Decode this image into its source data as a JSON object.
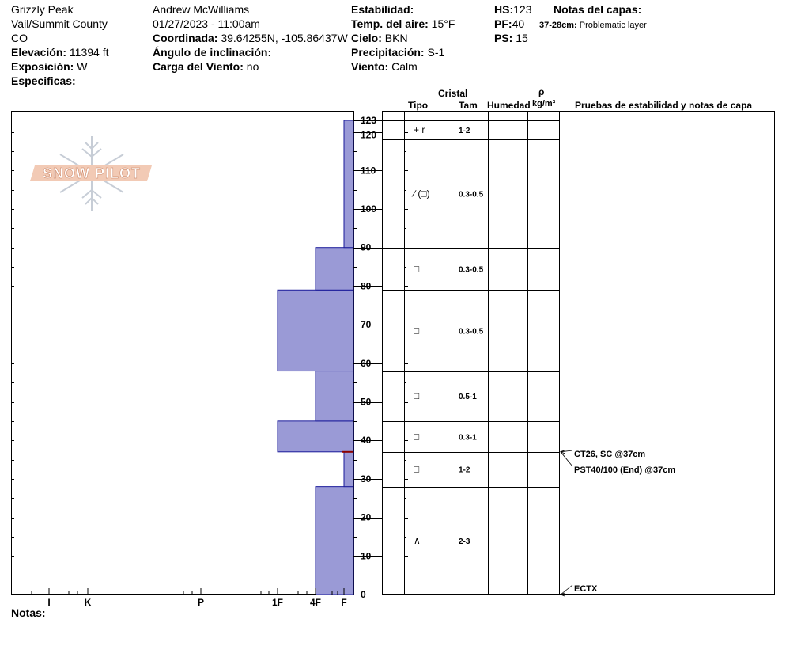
{
  "header": {
    "location": "Grizzly Peak",
    "region": "Vail/Summit County",
    "state": "CO",
    "elevation_label": "Elevación:",
    "elevation_value": "11394 ft",
    "aspect_label": "Exposición:",
    "aspect_value": "W",
    "specifics_label": "Especificas:",
    "observer": "Andrew McWilliams",
    "datetime": "01/27/2023 - 11:00am",
    "coord_label": "Coordinada:",
    "coord_value": "39.64255N, -105.86437W",
    "slope_label": "Ángulo de inclinación:",
    "slope_value": "",
    "wind_load_label": "Carga del Viento:",
    "wind_load_value": "no",
    "stability_label": "Estabilidad:",
    "stability_value": "",
    "air_temp_label": "Temp. del aire:",
    "air_temp_value": "15°F",
    "sky_label": "Cielo:",
    "sky_value": "BKN",
    "precip_label": "Precipitación:",
    "precip_value": "S-1",
    "wind_label": "Viento:",
    "wind_value": "Calm",
    "hs_label": "HS:",
    "hs_value": "123",
    "pf_label": "PF:",
    "pf_value": "40",
    "ps_label": "PS:",
    "ps_value": "15",
    "layer_notes_label": "Notas del capas:",
    "layer_note_range": "37-28cm:",
    "layer_note_text": "Problematic layer"
  },
  "logo_text": "SNOW PILOT",
  "notes_label": "Notas:",
  "columns": {
    "crystal": "Cristal",
    "type": "Tipo",
    "size": "Tam",
    "moisture": "Humedad",
    "rho": "ρ",
    "density_unit": "kg/m³",
    "tests": "Pruebas de estabilidad y notas de capa"
  },
  "colors": {
    "hardness_fill": "#9a9ad6",
    "hardness_stroke": "#1a1a9a",
    "weak_layer": "#8b0000"
  },
  "chart_data": {
    "type": "bar",
    "y_range": [
      0,
      123
    ],
    "y_ticks": [
      "0",
      "10",
      "20",
      "30",
      "40",
      "50",
      "60",
      "70",
      "80",
      "90",
      "100",
      "110",
      "120",
      "123"
    ],
    "hardness_scale": [
      "I",
      "K",
      "P",
      "1F",
      "4F",
      "F"
    ],
    "hardness_layers": [
      {
        "bottom": 0,
        "top": 28,
        "hardness": "4F"
      },
      {
        "bottom": 28,
        "top": 37,
        "hardness": "F"
      },
      {
        "bottom": 37,
        "top": 45,
        "hardness": "1F"
      },
      {
        "bottom": 45,
        "top": 58,
        "hardness": "4F"
      },
      {
        "bottom": 58,
        "top": 79,
        "hardness": "1F"
      },
      {
        "bottom": 79,
        "top": 90,
        "hardness": "4F"
      },
      {
        "bottom": 90,
        "top": 123,
        "hardness": "F"
      }
    ],
    "layer_boundaries": [
      0,
      28,
      37,
      45,
      58,
      79,
      90,
      118,
      123
    ],
    "crystal_layers": [
      {
        "bottom": 118,
        "top": 123,
        "type": "+ r",
        "size": "1-2"
      },
      {
        "bottom": 90,
        "top": 118,
        "type": "∕ (□)",
        "size": "0.3-0.5"
      },
      {
        "bottom": 79,
        "top": 90,
        "type": "□",
        "size": "0.3-0.5"
      },
      {
        "bottom": 58,
        "top": 79,
        "type": "□",
        "size": "0.3-0.5"
      },
      {
        "bottom": 45,
        "top": 58,
        "type": "□",
        "size": "0.5-1"
      },
      {
        "bottom": 37,
        "top": 45,
        "type": "□",
        "size": "0.3-1"
      },
      {
        "bottom": 28,
        "top": 37,
        "type": "□",
        "size": "1-2"
      },
      {
        "bottom": 0,
        "top": 28,
        "type": "∧",
        "size": "2-3"
      }
    ],
    "weak_layer_height": 37,
    "stability_tests": [
      {
        "height": 37,
        "text": "CT26, SC @37cm"
      },
      {
        "height": 37,
        "text": "PST40/100 (End) @37cm"
      },
      {
        "height": 0,
        "text": "ECTX"
      }
    ]
  }
}
